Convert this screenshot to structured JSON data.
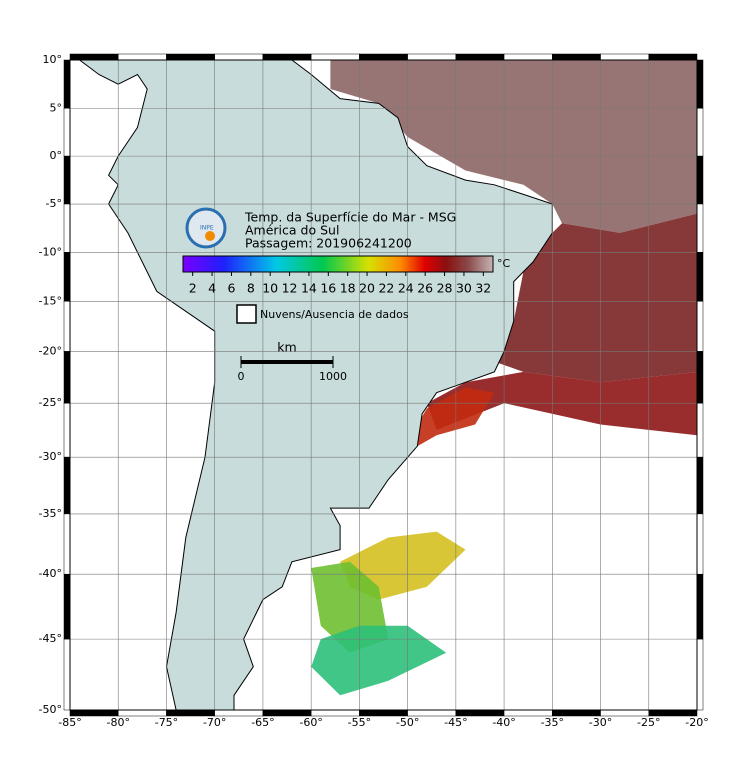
{
  "map": {
    "lon_ticks": [
      {
        "value": -85,
        "label": "-85°"
      },
      {
        "value": -80,
        "label": "-80°"
      },
      {
        "value": -75,
        "label": "-75°"
      },
      {
        "value": -70,
        "label": "-70°"
      },
      {
        "value": -65,
        "label": "-65°"
      },
      {
        "value": -60,
        "label": "-60°"
      },
      {
        "value": -55,
        "label": "-55°"
      },
      {
        "value": -50,
        "label": "-50°"
      },
      {
        "value": -45,
        "label": "-45°"
      },
      {
        "value": -40,
        "label": "-40°"
      },
      {
        "value": -35,
        "label": "-35°"
      },
      {
        "value": -30,
        "label": "-30°"
      },
      {
        "value": -25,
        "label": "-25°"
      },
      {
        "value": -20,
        "label": "-20°"
      }
    ],
    "lat_ticks": [
      {
        "value": 10,
        "label": "10°"
      },
      {
        "value": 5,
        "label": "5°"
      },
      {
        "value": 0,
        "label": "0°"
      },
      {
        "value": -5,
        "label": "-5°"
      },
      {
        "value": -10,
        "label": "-10°"
      },
      {
        "value": -15,
        "label": "-15°"
      },
      {
        "value": -20,
        "label": "-20°"
      },
      {
        "value": -25,
        "label": "-25°"
      },
      {
        "value": -30,
        "label": "-30°"
      },
      {
        "value": -35,
        "label": "-35°"
      },
      {
        "value": -40,
        "label": "-40°"
      },
      {
        "value": -45,
        "label": "-45°"
      },
      {
        "value": -50,
        "label": "-50°"
      }
    ],
    "lonlim": [
      -85,
      -20
    ],
    "latlim": [
      -50,
      10
    ]
  },
  "legend": {
    "logo": "INPE",
    "title": "Temp. da Superfície do Mar - MSG",
    "region": "América do Sul",
    "pass": "Passagem: 201906241200",
    "colorbar": {
      "range": [
        1,
        33
      ],
      "ticks": [
        2,
        4,
        6,
        8,
        10,
        12,
        14,
        16,
        18,
        20,
        22,
        24,
        26,
        28,
        30,
        32
      ],
      "unit": "°C"
    },
    "no_data": "Nuvens/Ausencia de dados",
    "scale_bar": {
      "label": "km",
      "ticks": [
        0,
        1000
      ]
    }
  }
}
